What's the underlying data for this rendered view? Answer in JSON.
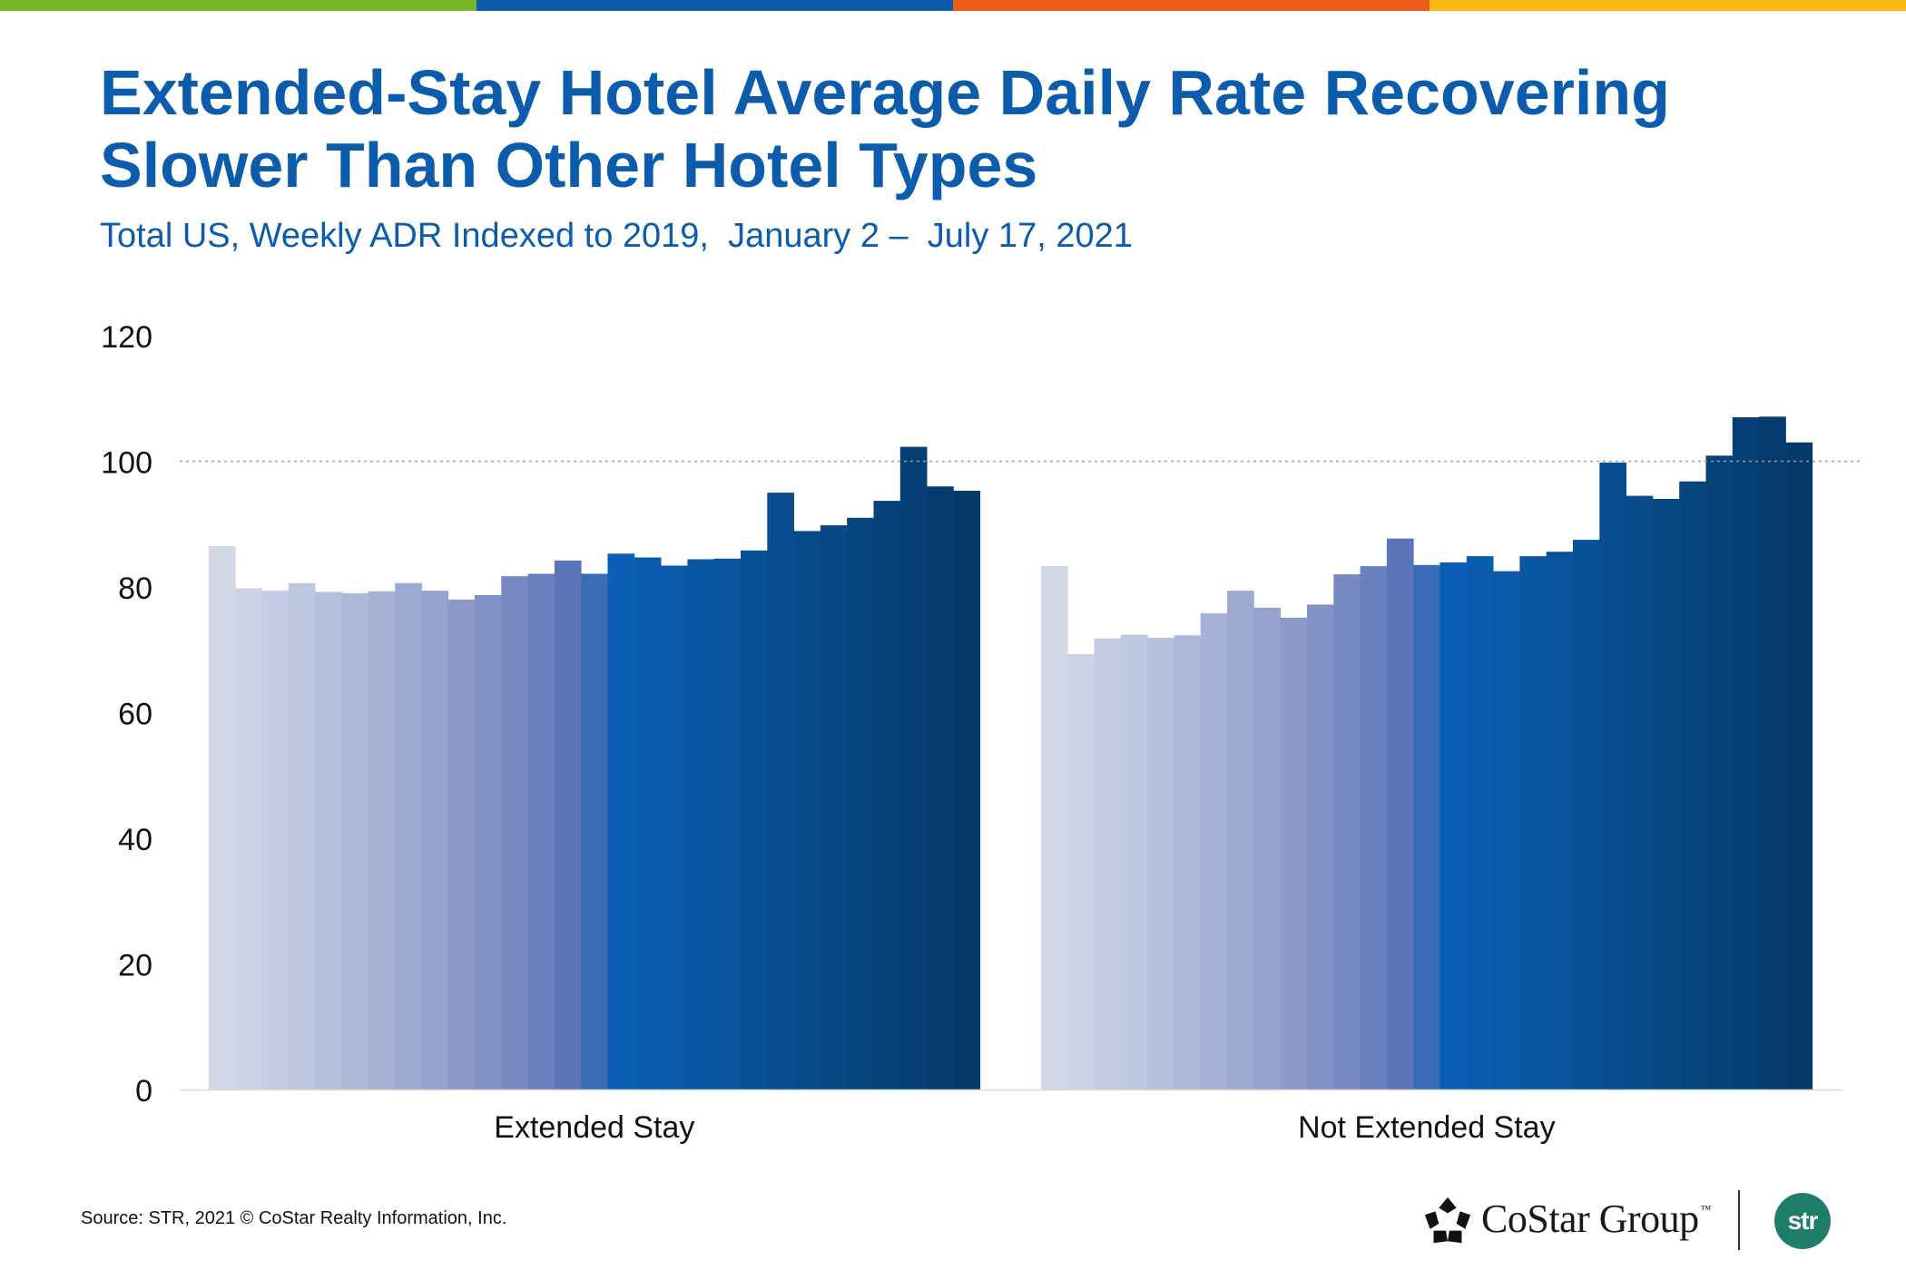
{
  "stripes": [
    "#77b82a",
    "#0b5cad",
    "#f05a1a",
    "#fbb718"
  ],
  "title": "Extended-Stay Hotel Average Daily Rate Recovering Slower Than Other Hotel Types",
  "subtitle": "Total US, Weekly ADR Indexed to 2019,  January 2 –  July 17, 2021",
  "chart_data": {
    "type": "bar",
    "title": "Extended-Stay Hotel Average Daily Rate Recovering Slower Than Other Hotel Types",
    "subtitle": "Total US, Weekly ADR Indexed to 2019,  January 2 –  July 17, 2021",
    "xlabel": "",
    "ylabel": "",
    "ylim": [
      0,
      120
    ],
    "yticks": [
      0,
      20,
      40,
      60,
      80,
      100,
      120
    ],
    "reference_line": 100,
    "categories": [
      "Extended Stay",
      "Not Extended Stay"
    ],
    "series_note": "Weekly bars, January 2 – July 17, 2021",
    "groups": [
      {
        "name": "Extended Stay",
        "values": [
          86.5,
          79.8,
          79.4,
          80.6,
          79.2,
          79.0,
          79.3,
          80.6,
          79.4,
          78.0,
          78.7,
          81.7,
          82.1,
          84.2,
          82.1,
          85.3,
          84.7,
          83.4,
          84.4,
          84.5,
          85.8,
          95.0,
          88.9,
          89.8,
          91.0,
          93.7,
          102.3,
          96.0,
          95.3
        ]
      },
      {
        "name": "Not Extended Stay",
        "values": [
          83.3,
          69.3,
          71.8,
          72.4,
          71.9,
          72.3,
          75.8,
          79.4,
          76.7,
          75.1,
          77.2,
          82.0,
          83.3,
          87.7,
          83.5,
          83.9,
          84.9,
          82.5,
          84.9,
          85.6,
          87.5,
          99.8,
          94.5,
          94.0,
          96.8,
          100.9,
          107.0,
          107.1,
          103.0
        ]
      }
    ],
    "colors": [
      "#d3d8e9",
      "#cdd3e7",
      "#c5cde4",
      "#bec7e0",
      "#b6c0dc",
      "#aeb9d9",
      "#a5b1d5",
      "#9ca9d1",
      "#94a2cd",
      "#8b9ac9",
      "#8292c5",
      "#7789c1",
      "#6a7fbd",
      "#5a74b8",
      "#3a6bb7",
      "#0a5fb4",
      "#0a5dae",
      "#095aa9",
      "#0957a3",
      "#09549d",
      "#085197",
      "#084e91",
      "#084b8b",
      "#074885",
      "#07457f",
      "#074279",
      "#063f74",
      "#063c6e",
      "#053968"
    ]
  },
  "source": "Source: STR, 2021 © CoStar Realty Information, Inc.",
  "logos": {
    "costar": "CoStar Group",
    "costar_tm": "™",
    "str": "str",
    "str_color": "#1e7d6a"
  }
}
